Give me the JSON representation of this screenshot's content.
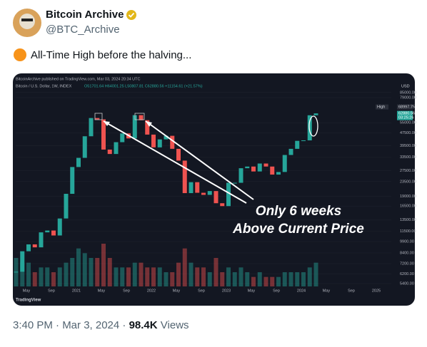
{
  "author": {
    "name": "Bitcoin Archive",
    "handle": "@BTC_Archive"
  },
  "tweet": {
    "text": "All-Time High before the halving..."
  },
  "image": {
    "header": "BitcoinArchive published on TradingView.com, Mar 03, 2024 20:34 UTC",
    "symbol": "Bitcoin / U.S. Dollar, 1W, INDEX",
    "ohlc": "O51701.64 H64001.25 L50807.81 C62880.56 +11154.61 (+21.57%)",
    "currency": "USD",
    "chart": {
      "type": "candlestick",
      "log_scale": true,
      "grid": true,
      "ylim": [
        4600,
        100000
      ],
      "yticks": [
        {
          "value": 85000,
          "label": "85000.00"
        },
        {
          "value": 79000,
          "label": "79000.00"
        },
        {
          "value": 55000,
          "label": "55000.00"
        },
        {
          "value": 47500,
          "label": "47500.00"
        },
        {
          "value": 39500,
          "label": "39500.00"
        },
        {
          "value": 33500,
          "label": "33500.00"
        },
        {
          "value": 27500,
          "label": "27500.00"
        },
        {
          "value": 23500,
          "label": "23500.00"
        },
        {
          "value": 19000,
          "label": "19000.00"
        },
        {
          "value": 16500,
          "label": "16500.00"
        },
        {
          "value": 13500,
          "label": "13500.00"
        },
        {
          "value": 11500,
          "label": "11500.00"
        },
        {
          "value": 9900,
          "label": "9900.00"
        },
        {
          "value": 8400,
          "label": "8400.00"
        },
        {
          "value": 7200,
          "label": "7200.00"
        },
        {
          "value": 6200,
          "label": "6200.00"
        },
        {
          "value": 5400,
          "label": "5400.00"
        }
      ],
      "x_labels": [
        "May",
        "Sep",
        "2021",
        "May",
        "Sep",
        "2022",
        "May",
        "Sep",
        "2023",
        "May",
        "Sep",
        "2024",
        "May",
        "Sep",
        "2025"
      ],
      "closes": [
        6400,
        8600,
        9500,
        9100,
        11300,
        11600,
        10800,
        13800,
        19700,
        29000,
        33100,
        45200,
        58800,
        57700,
        37300,
        35000,
        41500,
        47100,
        43800,
        61300,
        57000,
        46300,
        38500,
        43200,
        45500,
        37700,
        31800,
        19900,
        23300,
        20000,
        19400,
        20500,
        17200,
        16500,
        23100,
        23100,
        28500,
        29200,
        27200,
        30500,
        29200,
        26000,
        27000,
        34500,
        37700,
        42300,
        42600,
        61200,
        62880
      ],
      "volumes": [
        6,
        5,
        5,
        3,
        4,
        4,
        3,
        4,
        5,
        6,
        8,
        7,
        6,
        6,
        9,
        6,
        4,
        4,
        4,
        5,
        5,
        4,
        4,
        4,
        3,
        3,
        5,
        8,
        5,
        4,
        4,
        3,
        6,
        3,
        4,
        3,
        4,
        3,
        2,
        3,
        2,
        2,
        2,
        3,
        3,
        3,
        3,
        4,
        5
      ],
      "up_color": "#26a69a",
      "down_color": "#ef5350"
    },
    "high_label": "High",
    "high_value": 68997.75,
    "last_price": 62880.56,
    "countdown": "03:25:26",
    "annotation": [
      "Only 6 weeks",
      "Above Current Price"
    ],
    "logo": "TradingView"
  },
  "footer": {
    "time": "3:40 PM · Mar 3, 2024 ·",
    "views": "98.4K",
    "views_label": "Views"
  }
}
